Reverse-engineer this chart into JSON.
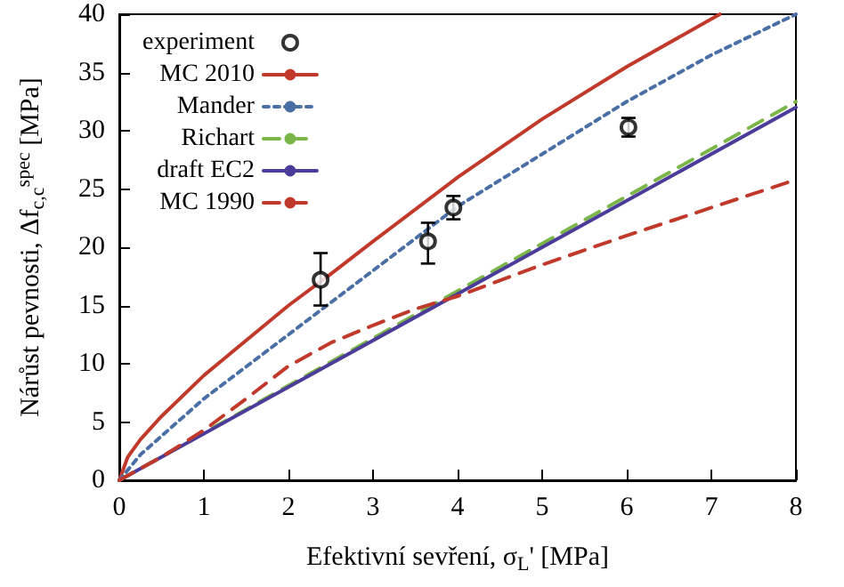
{
  "chart_data": {
    "type": "line",
    "xlabel": "Efektivní sevření, σ$_{L}$' [MPa]",
    "ylabel": "Nárůst pevnosti, Δf$_{c,c}$$^{spec}$ [MPa]",
    "xlim": [
      0,
      8
    ],
    "xticks": [
      0,
      1,
      2,
      3,
      4,
      5,
      6,
      7,
      8
    ],
    "ylim": [
      0,
      40
    ],
    "yticks": [
      0,
      5,
      10,
      15,
      20,
      25,
      30,
      35,
      40
    ],
    "grid": false,
    "legend": "top left",
    "series": [
      {
        "name": "experiment",
        "type": "scatter",
        "color": "#000000",
        "marker": "circle",
        "x": [
          2.38,
          3.65,
          3.95,
          6.02
        ],
        "values": [
          17.2,
          20.5,
          23.4,
          30.3
        ],
        "errors": [
          [
            15,
            19.5
          ],
          [
            18.6,
            22.1
          ],
          [
            22.4,
            24.4
          ],
          [
            29.5,
            31.1
          ]
        ]
      },
      {
        "name": "MC 2010",
        "type": "line",
        "color": "#c0392b",
        "marker": "none",
        "line_style": "solid",
        "x": [
          0,
          0.1,
          0.25,
          0.5,
          1,
          1.5,
          2,
          2.5,
          3,
          4,
          5,
          6,
          7.1
        ],
        "values": [
          0,
          2,
          3.5,
          5.5,
          9,
          12,
          15,
          17.7,
          20.5,
          26,
          31,
          35.5,
          40
        ]
      },
      {
        "name": "Mander",
        "type": "line",
        "color": "#4a6fa5",
        "marker": "none",
        "line_style": "dotted",
        "x": [
          0,
          0.25,
          0.5,
          1,
          2,
          3,
          4,
          5,
          6,
          7,
          8
        ],
        "values": [
          0,
          2.2,
          3.8,
          7,
          12.5,
          18,
          23.5,
          28,
          32.5,
          36.5,
          40
        ]
      },
      {
        "name": "Richart",
        "type": "line",
        "color": "#7ab648",
        "marker": "none",
        "line_style": "dashed",
        "x": [
          0,
          8
        ],
        "values": [
          0,
          32.5
        ]
      },
      {
        "name": "draft EC2",
        "type": "line",
        "color": "#4b3c99",
        "marker": "none",
        "line_style": "solid",
        "x": [
          0,
          4,
          8
        ],
        "values": [
          0,
          16,
          32
        ]
      },
      {
        "name": "MC 1990",
        "type": "line",
        "color": "#c0392b",
        "marker": "none",
        "line_style": "dashed",
        "x": [
          0,
          0.5,
          1,
          1.5,
          2,
          2.5,
          3,
          3.5,
          4,
          5,
          6,
          7,
          8
        ],
        "values": [
          0,
          2,
          4.3,
          7,
          9.8,
          11.8,
          13.3,
          14.7,
          15.8,
          18.5,
          21,
          23.4,
          25.8
        ]
      }
    ]
  }
}
